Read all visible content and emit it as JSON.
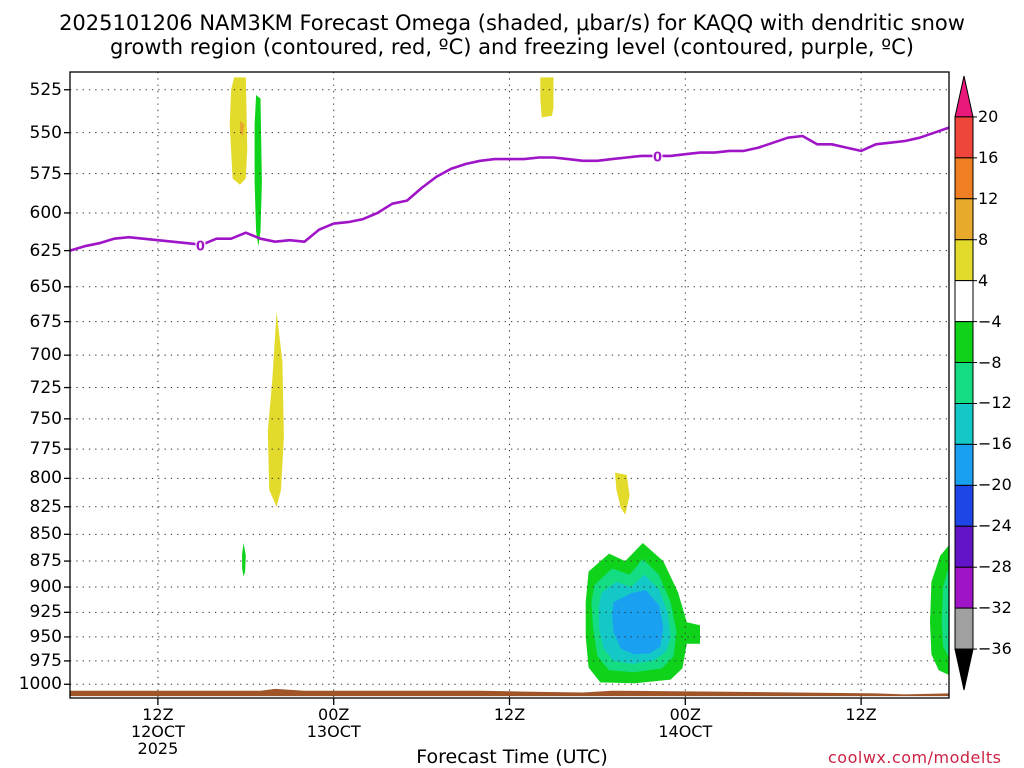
{
  "title_line1": "2025101206 NAM3KM Forecast Omega (shaded, μbar/s) for KAQQ with dendritic snow",
  "title_line2": "growth region (contoured, red, ºC) and freezing level (contoured, purple, ºC)",
  "x_axis_label": "Forecast Time (UTC)",
  "credit": "coolwx.com/modelts",
  "chart_data": {
    "type": "heatmap",
    "title": "2025101206 NAM3KM Forecast Omega (shaded, μbar/s) for KAQQ with dendritic snow growth region (contoured, red, ºC) and freezing level (contoured, purple, ºC)",
    "xlabel": "Forecast Time (UTC)",
    "ylabel": "",
    "x_units": "forecast hour from 2025-10-12 06Z",
    "xlim": [
      0,
      60
    ],
    "y_axis": {
      "units": "hPa",
      "inverted": true,
      "ylim": [
        1015,
        515
      ],
      "scale": "log-pressure"
    },
    "y_ticks": [
      525,
      550,
      575,
      600,
      625,
      650,
      675,
      700,
      725,
      750,
      775,
      800,
      825,
      850,
      875,
      900,
      925,
      950,
      975,
      1000
    ],
    "x_ticks": [
      {
        "x": 6,
        "line1": "12Z",
        "line2": "12OCT",
        "line3": "2025"
      },
      {
        "x": 18,
        "line1": "00Z",
        "line2": "13OCT",
        "line3": ""
      },
      {
        "x": 30,
        "line1": "12Z",
        "line2": "",
        "line3": ""
      },
      {
        "x": 42,
        "line1": "00Z",
        "line2": "14OCT",
        "line3": ""
      },
      {
        "x": 54,
        "line1": "12Z",
        "line2": "",
        "line3": ""
      }
    ],
    "grid": true,
    "colorbar": {
      "ticks": [
        20,
        16,
        12,
        8,
        4,
        -4,
        -8,
        -12,
        -16,
        -20,
        -24,
        -28,
        -32,
        -36
      ],
      "bins": [
        {
          "from": 20,
          "to": 24,
          "color": "#e8197a"
        },
        {
          "from": 16,
          "to": 20,
          "color": "#f0453b"
        },
        {
          "from": 12,
          "to": 16,
          "color": "#f07e22"
        },
        {
          "from": 8,
          "to": 12,
          "color": "#e8aa2a"
        },
        {
          "from": 4,
          "to": 8,
          "color": "#e3db2b"
        },
        {
          "from": -4,
          "to": 4,
          "color": "#ffffff"
        },
        {
          "from": -8,
          "to": -4,
          "color": "#0fd21a"
        },
        {
          "from": -12,
          "to": -8,
          "color": "#14dc82"
        },
        {
          "from": -16,
          "to": -12,
          "color": "#14c8c8"
        },
        {
          "from": -20,
          "to": -16,
          "color": "#1aa0f0"
        },
        {
          "from": -24,
          "to": -20,
          "color": "#1e46e6"
        },
        {
          "from": -28,
          "to": -24,
          "color": "#6414c8"
        },
        {
          "from": -32,
          "to": -28,
          "color": "#a014c8"
        },
        {
          "from": -36,
          "to": -32,
          "color": "#a0a0a0"
        },
        {
          "from": -40,
          "to": -36,
          "color": "#000000"
        }
      ]
    },
    "freezing_level": {
      "color": "#a014c8",
      "label": "0",
      "label_at": [
        [
          8.9,
          621.5
        ],
        [
          40.1,
          564.5
        ]
      ],
      "points": [
        [
          0,
          625
        ],
        [
          1,
          622
        ],
        [
          2,
          620
        ],
        [
          3,
          617
        ],
        [
          4,
          616
        ],
        [
          5,
          617
        ],
        [
          6,
          618
        ],
        [
          7,
          619
        ],
        [
          8,
          620
        ],
        [
          9,
          621
        ],
        [
          10,
          617
        ],
        [
          11,
          617
        ],
        [
          12,
          613
        ],
        [
          13,
          617
        ],
        [
          14,
          619
        ],
        [
          15,
          618
        ],
        [
          16,
          619
        ],
        [
          17,
          611
        ],
        [
          18,
          607
        ],
        [
          19,
          606
        ],
        [
          20,
          604
        ],
        [
          21,
          600
        ],
        [
          22,
          594
        ],
        [
          23,
          592
        ],
        [
          24,
          584
        ],
        [
          25,
          577
        ],
        [
          26,
          572
        ],
        [
          27,
          569
        ],
        [
          28,
          567
        ],
        [
          29,
          566
        ],
        [
          30,
          566
        ],
        [
          31,
          566
        ],
        [
          32,
          565
        ],
        [
          33,
          565
        ],
        [
          34,
          566
        ],
        [
          35,
          567
        ],
        [
          36,
          567
        ],
        [
          37,
          566
        ],
        [
          38,
          565
        ],
        [
          39,
          564
        ],
        [
          40,
          564
        ],
        [
          41,
          564
        ],
        [
          42,
          563
        ],
        [
          43,
          562
        ],
        [
          44,
          562
        ],
        [
          45,
          561
        ],
        [
          46,
          561
        ],
        [
          47,
          559
        ],
        [
          48,
          556
        ],
        [
          49,
          553
        ],
        [
          50,
          552
        ],
        [
          51,
          557
        ],
        [
          52,
          557
        ],
        [
          53,
          559
        ],
        [
          54,
          561
        ],
        [
          55,
          557
        ],
        [
          56,
          556
        ],
        [
          57,
          555
        ],
        [
          58,
          553
        ],
        [
          59,
          550
        ],
        [
          60,
          547
        ]
      ]
    },
    "surface": {
      "color": "#a05528",
      "top": [
        [
          0,
          1007
        ],
        [
          13,
          1007
        ],
        [
          14,
          1005
        ],
        [
          16,
          1007
        ],
        [
          28,
          1007
        ],
        [
          31,
          1008
        ],
        [
          35,
          1009
        ],
        [
          37,
          1007
        ],
        [
          44,
          1008
        ],
        [
          55,
          1010
        ],
        [
          57,
          1011
        ],
        [
          60,
          1010
        ]
      ],
      "bottom_hpa": 1013
    },
    "omega_regions": [
      {
        "value_bin": [
          4,
          8
        ],
        "color": "#e3db2b",
        "outline": [
          [
            11.2,
            518
          ],
          [
            12.0,
            518
          ],
          [
            12.1,
            560
          ],
          [
            12.0,
            578
          ],
          [
            11.6,
            582
          ],
          [
            11.1,
            578
          ],
          [
            10.9,
            545
          ],
          [
            11.0,
            525
          ]
        ]
      },
      {
        "value_bin": [
          8,
          12
        ],
        "color": "#e8aa2a",
        "outline": [
          [
            11.6,
            543
          ],
          [
            11.9,
            545
          ],
          [
            11.8,
            552
          ],
          [
            11.6,
            550
          ]
        ]
      },
      {
        "value_bin": [
          -8,
          -4
        ],
        "color": "#0fd21a",
        "outline": [
          [
            12.7,
            528
          ],
          [
            13.0,
            530
          ],
          [
            13.1,
            580
          ],
          [
            13.0,
            612
          ],
          [
            12.85,
            622
          ],
          [
            12.7,
            612
          ],
          [
            12.6,
            580
          ],
          [
            12.6,
            545
          ]
        ]
      },
      {
        "value_bin": [
          4,
          8
        ],
        "color": "#e3db2b",
        "outline": [
          [
            32.1,
            518
          ],
          [
            33.0,
            518
          ],
          [
            33.0,
            535
          ],
          [
            32.9,
            540
          ],
          [
            32.2,
            541
          ],
          [
            32.1,
            530
          ]
        ]
      },
      {
        "value_bin": [
          4,
          8
        ],
        "color": "#e3db2b",
        "outline": [
          [
            14.1,
            668
          ],
          [
            14.5,
            705
          ],
          [
            14.6,
            765
          ],
          [
            14.4,
            810
          ],
          [
            14.1,
            825
          ],
          [
            13.6,
            810
          ],
          [
            13.5,
            760
          ],
          [
            13.8,
            720
          ]
        ]
      },
      {
        "value_bin": [
          -8,
          -4
        ],
        "color": "#0fd21a",
        "outline": [
          [
            11.85,
            858
          ],
          [
            12.0,
            870
          ],
          [
            11.95,
            885
          ],
          [
            11.85,
            890
          ],
          [
            11.75,
            882
          ],
          [
            11.75,
            868
          ]
        ]
      },
      {
        "value_bin": [
          4,
          8
        ],
        "color": "#e3db2b",
        "outline": [
          [
            37.2,
            795
          ],
          [
            38.0,
            797
          ],
          [
            38.2,
            815
          ],
          [
            37.9,
            832
          ],
          [
            37.6,
            826
          ],
          [
            37.3,
            810
          ]
        ]
      },
      {
        "value_bin": [
          -8,
          -4
        ],
        "color": "#0fd21a",
        "outline": [
          [
            35.4,
            885
          ],
          [
            36.8,
            868
          ],
          [
            37.9,
            875
          ],
          [
            39.1,
            858
          ],
          [
            40.5,
            875
          ],
          [
            41.5,
            905
          ],
          [
            42.1,
            935
          ],
          [
            43.0,
            938
          ],
          [
            43.0,
            957
          ],
          [
            42.1,
            957
          ],
          [
            41.8,
            983
          ],
          [
            41.0,
            995
          ],
          [
            38.5,
            999
          ],
          [
            36.2,
            998
          ],
          [
            35.4,
            982
          ],
          [
            35.2,
            950
          ],
          [
            35.2,
            915
          ]
        ]
      },
      {
        "value_bin": [
          -12,
          -8
        ],
        "color": "#14dc82",
        "outline": [
          [
            35.8,
            898
          ],
          [
            37.0,
            882
          ],
          [
            38.2,
            888
          ],
          [
            39.1,
            873
          ],
          [
            40.2,
            888
          ],
          [
            41.0,
            915
          ],
          [
            41.4,
            945
          ],
          [
            41.2,
            970
          ],
          [
            40.4,
            983
          ],
          [
            38.5,
            987
          ],
          [
            36.8,
            985
          ],
          [
            36.0,
            970
          ],
          [
            35.7,
            940
          ],
          [
            35.6,
            915
          ]
        ]
      },
      {
        "value_bin": [
          -16,
          -12
        ],
        "color": "#14c8c8",
        "outline": [
          [
            36.3,
            905
          ],
          [
            37.3,
            895
          ],
          [
            38.3,
            900
          ],
          [
            39.2,
            888
          ],
          [
            40.2,
            902
          ],
          [
            40.8,
            925
          ],
          [
            41.0,
            950
          ],
          [
            40.7,
            965
          ],
          [
            39.8,
            975
          ],
          [
            38.4,
            978
          ],
          [
            37.1,
            975
          ],
          [
            36.4,
            962
          ],
          [
            36.1,
            940
          ],
          [
            36.1,
            920
          ]
        ]
      },
      {
        "value_bin": [
          -20,
          -16
        ],
        "color": "#1aa0f0",
        "outline": [
          [
            37.1,
            915
          ],
          [
            38.3,
            906
          ],
          [
            39.3,
            903
          ],
          [
            40.2,
            918
          ],
          [
            40.5,
            940
          ],
          [
            40.3,
            960
          ],
          [
            39.6,
            967
          ],
          [
            38.5,
            968
          ],
          [
            37.6,
            962
          ],
          [
            37.1,
            945
          ],
          [
            37.0,
            928
          ]
        ]
      },
      {
        "value_bin": [
          -8,
          -4
        ],
        "color": "#0fd21a",
        "outline": [
          [
            60.0,
            860
          ],
          [
            59.4,
            870
          ],
          [
            58.8,
            895
          ],
          [
            58.7,
            935
          ],
          [
            58.8,
            968
          ],
          [
            59.3,
            985
          ],
          [
            60.0,
            990
          ]
        ]
      },
      {
        "value_bin": [
          -12,
          -8
        ],
        "color": "#14dc82",
        "outline": [
          [
            60.0,
            880
          ],
          [
            59.6,
            900
          ],
          [
            59.5,
            935
          ],
          [
            59.6,
            960
          ],
          [
            60.0,
            972
          ]
        ]
      }
    ]
  }
}
